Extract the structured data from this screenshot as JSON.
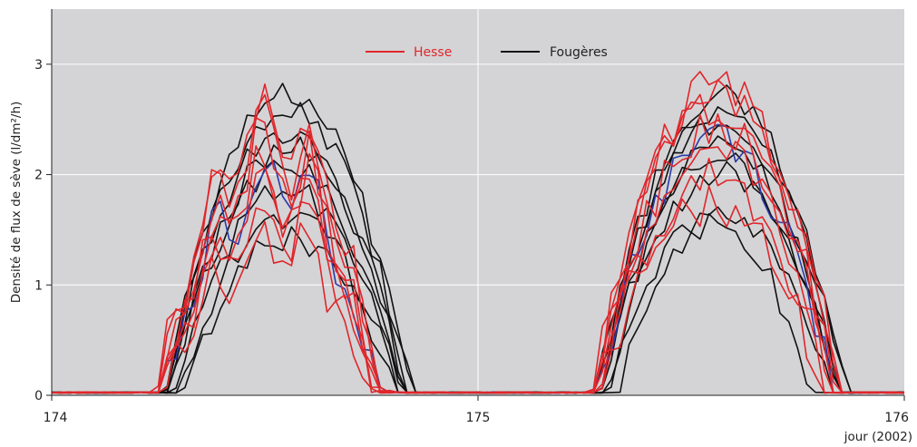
{
  "chart_data": {
    "type": "line",
    "title": "",
    "xlabel": "jour (2002)",
    "ylabel": "Densité de flux de sève (l/dm²/h)",
    "xlim": [
      174,
      176
    ],
    "ylim": [
      0,
      3.5
    ],
    "xticks": [
      174,
      175,
      176
    ],
    "yticks": [
      0,
      1,
      2,
      3
    ],
    "xtick_labels": [
      "174",
      "175",
      "176"
    ],
    "ytick_labels": [
      "0",
      "1",
      "2",
      "3"
    ],
    "grid": true,
    "background": "#d4d4d6",
    "legend": {
      "placement": "top-center",
      "entries": [
        {
          "name": "Hesse",
          "color": "#e0262b"
        },
        {
          "name": "Fougères",
          "color": "#111111"
        }
      ]
    },
    "colors": {
      "hesse": "#e0262b",
      "fougeres": "#111111",
      "other": "#2b3aa8"
    },
    "series": [
      {
        "name": "Hesse",
        "group": "hesse",
        "day1": {
          "peak": 2.75,
          "rise": 0.245,
          "fall": 0.8,
          "width": 0.16,
          "kind": "forest"
        },
        "day2": {
          "peak": 2.78,
          "rise": 0.27,
          "fall": 0.85,
          "width": 0.17,
          "kind": "smooth"
        }
      },
      {
        "name": "Hesse",
        "group": "hesse",
        "day1": {
          "peak": 2.62,
          "rise": 0.245,
          "fall": 0.8,
          "width": 0.16,
          "kind": "forest"
        },
        "day2": {
          "peak": 2.72,
          "rise": 0.27,
          "fall": 0.85,
          "width": 0.17,
          "kind": "smooth"
        }
      },
      {
        "name": "Hesse",
        "group": "hesse",
        "day1": {
          "peak": 2.45,
          "rise": 0.25,
          "fall": 0.79,
          "width": 0.16,
          "kind": "forest"
        },
        "day2": {
          "peak": 2.6,
          "rise": 0.27,
          "fall": 0.84,
          "width": 0.17,
          "kind": "smooth"
        }
      },
      {
        "name": "Hesse",
        "group": "hesse",
        "day1": {
          "peak": 2.25,
          "rise": 0.25,
          "fall": 0.79,
          "width": 0.16,
          "kind": "forest"
        },
        "day2": {
          "peak": 2.4,
          "rise": 0.28,
          "fall": 0.84,
          "width": 0.17,
          "kind": "smooth"
        }
      },
      {
        "name": "Hesse",
        "group": "hesse",
        "day1": {
          "peak": 2.05,
          "rise": 0.255,
          "fall": 0.78,
          "width": 0.16,
          "kind": "forest"
        },
        "day2": {
          "peak": 2.2,
          "rise": 0.28,
          "fall": 0.83,
          "width": 0.17,
          "kind": "smooth"
        }
      },
      {
        "name": "Hesse",
        "group": "hesse",
        "day1": {
          "peak": 1.82,
          "rise": 0.26,
          "fall": 0.78,
          "width": 0.16,
          "kind": "forest"
        },
        "day2": {
          "peak": 1.95,
          "rise": 0.28,
          "fall": 0.82,
          "width": 0.17,
          "kind": "smooth"
        }
      },
      {
        "name": "Hesse",
        "group": "hesse",
        "day1": {
          "peak": 1.55,
          "rise": 0.26,
          "fall": 0.77,
          "width": 0.16,
          "kind": "forest"
        },
        "day2": {
          "peak": 1.7,
          "rise": 0.29,
          "fall": 0.81,
          "width": 0.17,
          "kind": "smooth"
        }
      },
      {
        "name": "",
        "group": "other",
        "day1": {
          "peak": 2.18,
          "rise": 0.255,
          "fall": 0.79,
          "width": 0.16,
          "kind": "forest"
        },
        "day2": {
          "peak": 2.3,
          "rise": 0.28,
          "fall": 0.83,
          "width": 0.17,
          "kind": "smooth"
        }
      },
      {
        "name": "Fougères",
        "group": "fougeres",
        "day1": {
          "peak": 2.72,
          "rise": 0.27,
          "fall": 0.84,
          "width": 0.17,
          "kind": "smooth"
        },
        "day2": {
          "peak": 2.68,
          "rise": 0.28,
          "fall": 0.86,
          "width": 0.17,
          "kind": "smooth"
        }
      },
      {
        "name": "Fougères",
        "group": "fougeres",
        "day1": {
          "peak": 2.55,
          "rise": 0.265,
          "fall": 0.84,
          "width": 0.17,
          "kind": "smooth"
        },
        "day2": {
          "peak": 2.55,
          "rise": 0.28,
          "fall": 0.86,
          "width": 0.17,
          "kind": "smooth"
        }
      },
      {
        "name": "Fougères",
        "group": "fougeres",
        "day1": {
          "peak": 2.35,
          "rise": 0.27,
          "fall": 0.83,
          "width": 0.17,
          "kind": "smooth"
        },
        "day2": {
          "peak": 2.45,
          "rise": 0.28,
          "fall": 0.85,
          "width": 0.17,
          "kind": "smooth"
        }
      },
      {
        "name": "Fougères",
        "group": "fougeres",
        "day1": {
          "peak": 2.22,
          "rise": 0.28,
          "fall": 0.83,
          "width": 0.17,
          "kind": "smooth"
        },
        "day2": {
          "peak": 2.3,
          "rise": 0.29,
          "fall": 0.85,
          "width": 0.17,
          "kind": "smooth"
        }
      },
      {
        "name": "Fougères",
        "group": "fougeres",
        "day1": {
          "peak": 2.05,
          "rise": 0.28,
          "fall": 0.82,
          "width": 0.17,
          "kind": "smooth"
        },
        "day2": {
          "peak": 2.15,
          "rise": 0.29,
          "fall": 0.84,
          "width": 0.17,
          "kind": "smooth"
        }
      },
      {
        "name": "Fougères",
        "group": "fougeres",
        "day1": {
          "peak": 1.85,
          "rise": 0.29,
          "fall": 0.82,
          "width": 0.17,
          "kind": "smooth"
        },
        "day2": {
          "peak": 2.0,
          "rise": 0.3,
          "fall": 0.84,
          "width": 0.17,
          "kind": "smooth"
        }
      },
      {
        "name": "Fougères",
        "group": "fougeres",
        "day1": {
          "peak": 1.58,
          "rise": 0.3,
          "fall": 0.81,
          "width": 0.17,
          "kind": "smooth"
        },
        "day2": {
          "peak": 1.68,
          "rise": 0.31,
          "fall": 0.83,
          "width": 0.17,
          "kind": "smooth"
        }
      },
      {
        "name": "Fougères",
        "group": "fougeres",
        "day1": {
          "peak": 1.4,
          "rise": 0.31,
          "fall": 0.8,
          "width": 0.17,
          "kind": "smooth"
        },
        "day2": {
          "peak": 1.55,
          "rise": 0.33,
          "fall": 0.78,
          "width": 0.16,
          "kind": "smooth"
        }
      }
    ]
  }
}
